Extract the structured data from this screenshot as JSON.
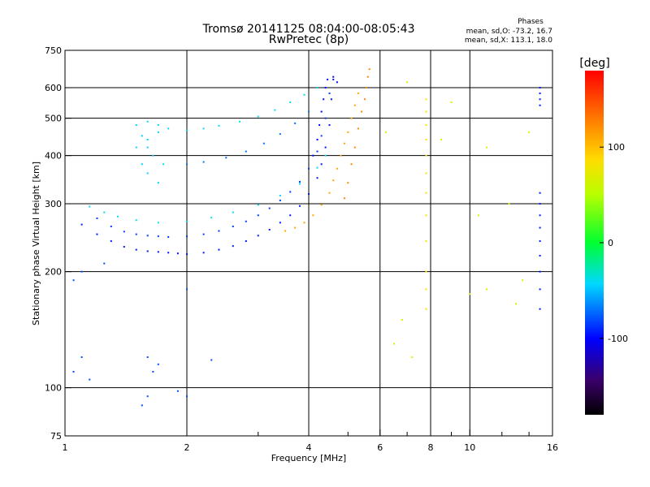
{
  "chart_data": {
    "type": "scatter",
    "title": "Tromsø 20141125 08:04:00-08:05:43",
    "subtitle": "RwPretec (8p)",
    "xlabel": "Frequency [MHz]",
    "ylabel": "Stationary phase Virtual Height [km]",
    "x_scale": "log",
    "y_scale": "log",
    "xlim": [
      1,
      16
    ],
    "ylim": [
      75,
      750
    ],
    "x_ticks": [
      1,
      2,
      4,
      6,
      8,
      10,
      16
    ],
    "y_ticks": [
      75,
      100,
      200,
      300,
      400,
      500,
      600,
      750
    ],
    "grid": true,
    "stats": {
      "heading": "Phases",
      "line_o": "mean, sd,O: -73.2, 16.7",
      "line_x": "mean, sd,X: 113.1, 18.0"
    },
    "colorbar": {
      "label": "[deg]",
      "range": [
        -180,
        180
      ],
      "ticks": [
        100,
        0,
        -100
      ],
      "colormap": "rainbow"
    },
    "colors": {
      "grid": "#000000",
      "background": "#ffffff"
    },
    "series": [
      {
        "trace": "lower-blue-arc",
        "phase": -95,
        "points": [
          [
            1.1,
            265
          ],
          [
            1.2,
            250
          ],
          [
            1.3,
            240
          ],
          [
            1.4,
            232
          ],
          [
            1.5,
            228
          ],
          [
            1.6,
            226
          ],
          [
            1.7,
            225
          ],
          [
            1.8,
            224
          ],
          [
            1.9,
            223
          ],
          [
            2.0,
            222
          ],
          [
            2.2,
            224
          ],
          [
            2.4,
            228
          ],
          [
            2.6,
            233
          ],
          [
            2.8,
            240
          ],
          [
            3.0,
            248
          ],
          [
            3.2,
            257
          ],
          [
            3.4,
            268
          ],
          [
            3.6,
            280
          ],
          [
            3.8,
            296
          ],
          [
            4.0,
            318
          ],
          [
            4.2,
            350
          ],
          [
            4.3,
            380
          ],
          [
            4.4,
            420
          ],
          [
            4.5,
            480
          ],
          [
            4.55,
            560
          ],
          [
            4.6,
            630
          ]
        ]
      },
      {
        "trace": "middle-blue-arc",
        "phase": -85,
        "points": [
          [
            1.2,
            275
          ],
          [
            1.3,
            262
          ],
          [
            1.4,
            254
          ],
          [
            1.5,
            250
          ],
          [
            1.6,
            248
          ],
          [
            1.7,
            247
          ],
          [
            1.8,
            246
          ],
          [
            2.0,
            247
          ],
          [
            2.2,
            250
          ],
          [
            2.4,
            255
          ],
          [
            2.6,
            262
          ],
          [
            2.8,
            270
          ],
          [
            3.0,
            280
          ],
          [
            3.2,
            292
          ],
          [
            3.4,
            306
          ],
          [
            3.6,
            322
          ],
          [
            3.8,
            342
          ],
          [
            4.0,
            370
          ],
          [
            4.2,
            410
          ],
          [
            4.3,
            450
          ],
          [
            4.4,
            500
          ],
          [
            4.5,
            580
          ]
        ]
      },
      {
        "trace": "upper-cyan-arc",
        "phase": -40,
        "points": [
          [
            1.15,
            295
          ],
          [
            1.25,
            285
          ],
          [
            1.35,
            278
          ],
          [
            1.5,
            272
          ],
          [
            1.7,
            268
          ],
          [
            2.0,
            270
          ],
          [
            2.3,
            276
          ],
          [
            2.6,
            285
          ],
          [
            3.0,
            298
          ],
          [
            3.4,
            315
          ],
          [
            3.8,
            338
          ],
          [
            4.2,
            372
          ],
          [
            4.4,
            400
          ]
        ]
      },
      {
        "trace": "f2-cusp-steep",
        "phase": -100,
        "points": [
          [
            4.1,
            400
          ],
          [
            4.2,
            440
          ],
          [
            4.25,
            480
          ],
          [
            4.3,
            520
          ],
          [
            4.35,
            560
          ],
          [
            4.4,
            600
          ],
          [
            4.45,
            630
          ],
          [
            4.6,
            640
          ],
          [
            4.7,
            620
          ]
        ]
      },
      {
        "trace": "oblique-echoes-cyan",
        "phase": -40,
        "points": [
          [
            1.6,
            490
          ],
          [
            1.7,
            480
          ],
          [
            1.8,
            470
          ],
          [
            2.0,
            465
          ],
          [
            2.2,
            470
          ],
          [
            2.4,
            478
          ],
          [
            2.7,
            490
          ],
          [
            3.0,
            505
          ],
          [
            3.3,
            525
          ],
          [
            3.6,
            550
          ],
          [
            3.9,
            575
          ],
          [
            4.2,
            600
          ]
        ]
      },
      {
        "trace": "oblique-echoes-blue",
        "phase": -70,
        "points": [
          [
            2.0,
            380
          ],
          [
            2.2,
            385
          ],
          [
            2.5,
            395
          ],
          [
            2.8,
            410
          ],
          [
            3.1,
            430
          ],
          [
            3.4,
            455
          ],
          [
            3.7,
            485
          ],
          [
            4.0,
            520
          ]
        ]
      },
      {
        "trace": "left-cluster-cyan",
        "phase": -45,
        "points": [
          [
            1.5,
            480
          ],
          [
            1.55,
            450
          ],
          [
            1.6,
            420
          ],
          [
            1.65,
            400
          ],
          [
            1.55,
            380
          ],
          [
            1.6,
            360
          ],
          [
            1.7,
            340
          ],
          [
            1.5,
            420
          ],
          [
            1.6,
            440
          ],
          [
            1.7,
            460
          ],
          [
            1.75,
            380
          ]
        ]
      },
      {
        "trace": "x-mode-orange",
        "phase": 110,
        "points": [
          [
            3.5,
            255
          ],
          [
            3.7,
            260
          ],
          [
            3.9,
            268
          ],
          [
            4.1,
            280
          ],
          [
            4.3,
            298
          ],
          [
            4.5,
            320
          ],
          [
            4.6,
            345
          ],
          [
            4.7,
            370
          ],
          [
            4.8,
            400
          ],
          [
            4.9,
            430
          ],
          [
            5.0,
            460
          ],
          [
            5.1,
            500
          ],
          [
            5.2,
            540
          ],
          [
            5.3,
            580
          ]
        ]
      },
      {
        "trace": "x-mode-yellow",
        "phase": 125,
        "points": [
          [
            4.9,
            310
          ],
          [
            5.0,
            340
          ],
          [
            5.1,
            380
          ],
          [
            5.2,
            420
          ],
          [
            5.3,
            470
          ],
          [
            5.4,
            520
          ],
          [
            5.5,
            560
          ],
          [
            5.55,
            600
          ],
          [
            5.6,
            640
          ],
          [
            5.65,
            670
          ]
        ]
      },
      {
        "trace": "low-altitude-echoes",
        "phase": -80,
        "points": [
          [
            1.05,
            110
          ],
          [
            1.1,
            120
          ],
          [
            1.15,
            105
          ],
          [
            1.6,
            120
          ],
          [
            1.65,
            110
          ],
          [
            1.7,
            115
          ],
          [
            1.55,
            90
          ],
          [
            1.6,
            95
          ],
          [
            1.9,
            98
          ],
          [
            2.0,
            95
          ],
          [
            2.3,
            118
          ],
          [
            1.05,
            190
          ],
          [
            1.1,
            200
          ],
          [
            1.25,
            210
          ],
          [
            2.0,
            180
          ]
        ]
      },
      {
        "trace": "vertical-column-8MHz",
        "phase": 80,
        "points": [
          [
            7.8,
            240
          ],
          [
            7.8,
            280
          ],
          [
            7.8,
            320
          ],
          [
            7.8,
            360
          ],
          [
            7.8,
            400
          ],
          [
            7.8,
            440
          ],
          [
            7.8,
            480
          ],
          [
            7.8,
            520
          ],
          [
            7.8,
            560
          ],
          [
            7.8,
            200
          ],
          [
            7.8,
            180
          ],
          [
            7.8,
            160
          ]
        ]
      },
      {
        "trace": "vertical-column-15MHz",
        "phase": -95,
        "points": [
          [
            14.9,
            200
          ],
          [
            14.9,
            220
          ],
          [
            14.9,
            240
          ],
          [
            14.9,
            260
          ],
          [
            14.9,
            280
          ],
          [
            14.9,
            300
          ],
          [
            14.9,
            320
          ],
          [
            14.9,
            180
          ],
          [
            14.9,
            160
          ],
          [
            14.9,
            540
          ],
          [
            14.9,
            560
          ],
          [
            14.9,
            580
          ],
          [
            14.9,
            600
          ]
        ]
      },
      {
        "trace": "scattered-noise",
        "phase": 60,
        "points": [
          [
            6.5,
            130
          ],
          [
            6.8,
            150
          ],
          [
            7.2,
            120
          ],
          [
            7.0,
            620
          ],
          [
            9.0,
            550
          ],
          [
            10.5,
            280
          ],
          [
            11.0,
            420
          ],
          [
            12.5,
            300
          ],
          [
            13.5,
            190
          ],
          [
            10.0,
            175
          ],
          [
            11.0,
            180
          ],
          [
            13.0,
            165
          ],
          [
            14.0,
            460
          ],
          [
            6.2,
            460
          ],
          [
            8.5,
            440
          ]
        ]
      }
    ]
  }
}
